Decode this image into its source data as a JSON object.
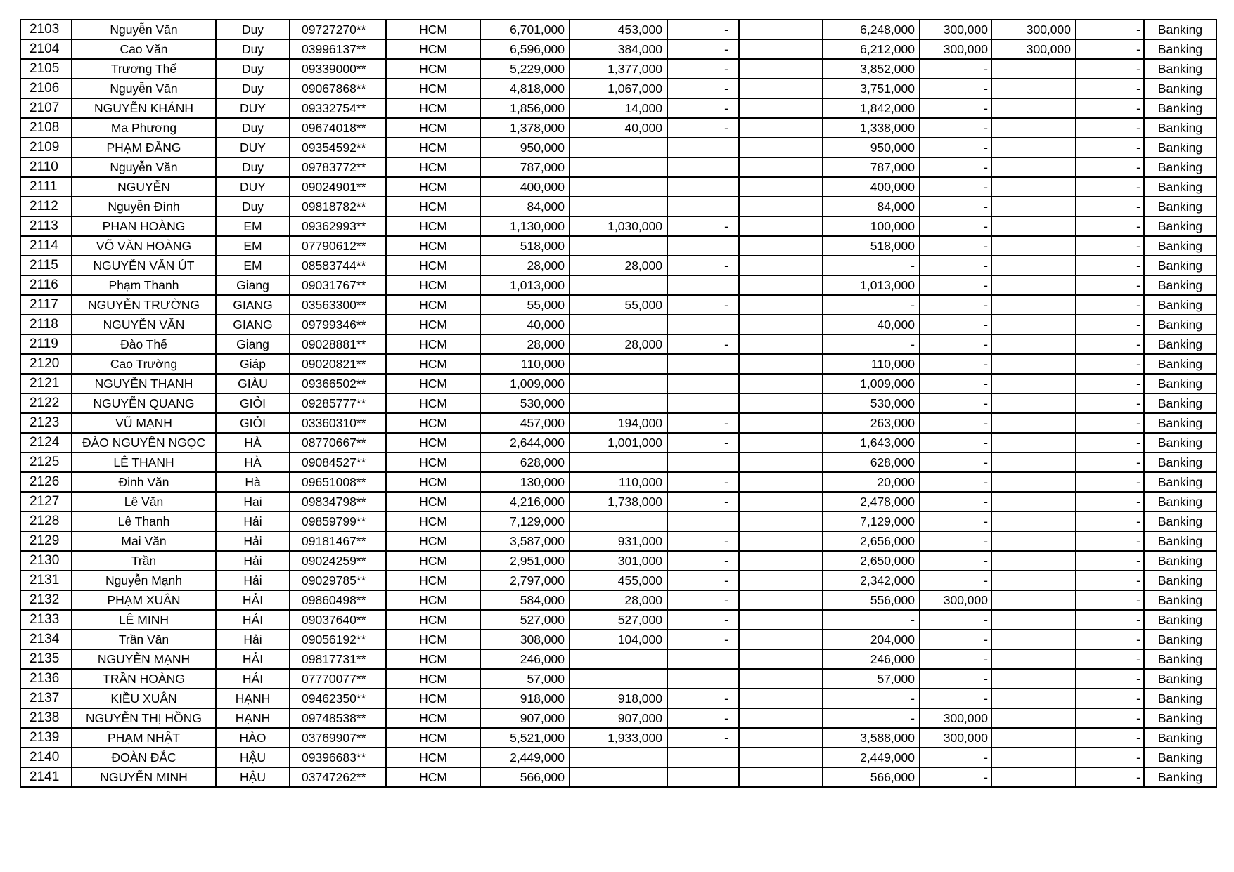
{
  "table": {
    "rows": [
      [
        "2103",
        "Nguyễn Văn",
        "Duy",
        "09727270**",
        "HCM",
        "6,701,000",
        "453,000",
        "-",
        "",
        "6,248,000",
        "300,000",
        "300,000",
        "-",
        "Banking"
      ],
      [
        "2104",
        "Cao Văn",
        "Duy",
        "03996137**",
        "HCM",
        "6,596,000",
        "384,000",
        "-",
        "",
        "6,212,000",
        "300,000",
        "300,000",
        "-",
        "Banking"
      ],
      [
        "2105",
        "Trương Thế",
        "Duy",
        "09339000**",
        "HCM",
        "5,229,000",
        "1,377,000",
        "-",
        "",
        "3,852,000",
        "-",
        "",
        "-",
        "Banking"
      ],
      [
        "2106",
        "Nguyễn Văn",
        "Duy",
        "09067868**",
        "HCM",
        "4,818,000",
        "1,067,000",
        "-",
        "",
        "3,751,000",
        "-",
        "",
        "-",
        "Banking"
      ],
      [
        "2107",
        "NGUYỄN KHÁNH",
        "DUY",
        "09332754**",
        "HCM",
        "1,856,000",
        "14,000",
        "-",
        "",
        "1,842,000",
        "-",
        "",
        "-",
        "Banking"
      ],
      [
        "2108",
        "Ma Phương",
        "Duy",
        "09674018**",
        "HCM",
        "1,378,000",
        "40,000",
        "-",
        "",
        "1,338,000",
        "-",
        "",
        "-",
        "Banking"
      ],
      [
        "2109",
        "PHẠM ĐĂNG",
        "DUY",
        "09354592**",
        "HCM",
        "950,000",
        "",
        "",
        "",
        "950,000",
        "-",
        "",
        "-",
        "Banking"
      ],
      [
        "2110",
        "Nguyễn Văn",
        "Duy",
        "09783772**",
        "HCM",
        "787,000",
        "",
        "",
        "",
        "787,000",
        "-",
        "",
        "-",
        "Banking"
      ],
      [
        "2111",
        "NGUYỄN",
        "DUY",
        "09024901**",
        "HCM",
        "400,000",
        "",
        "",
        "",
        "400,000",
        "-",
        "",
        "-",
        "Banking"
      ],
      [
        "2112",
        "Nguyễn Đình",
        "Duy",
        "09818782**",
        "HCM",
        "84,000",
        "",
        "",
        "",
        "84,000",
        "-",
        "",
        "-",
        "Banking"
      ],
      [
        "2113",
        "PHAN HOÀNG",
        "EM",
        "09362993**",
        "HCM",
        "1,130,000",
        "1,030,000",
        "-",
        "",
        "100,000",
        "-",
        "",
        "-",
        "Banking"
      ],
      [
        "2114",
        "VÕ VĂN HOÀNG",
        "EM",
        "07790612**",
        "HCM",
        "518,000",
        "",
        "",
        "",
        "518,000",
        "-",
        "",
        "-",
        "Banking"
      ],
      [
        "2115",
        "NGUYỄN VĂN ÚT",
        "EM",
        "08583744**",
        "HCM",
        "28,000",
        "28,000",
        "-",
        "",
        "-",
        "-",
        "",
        "-",
        "Banking"
      ],
      [
        "2116",
        "Phạm Thanh",
        "Giang",
        "09031767**",
        "HCM",
        "1,013,000",
        "",
        "",
        "",
        "1,013,000",
        "-",
        "",
        "-",
        "Banking"
      ],
      [
        "2117",
        "NGUYỄN TRƯỜNG",
        "GIANG",
        "03563300**",
        "HCM",
        "55,000",
        "55,000",
        "-",
        "",
        "-",
        "-",
        "",
        "-",
        "Banking"
      ],
      [
        "2118",
        "NGUYỄN VĂN",
        "GIANG",
        "09799346**",
        "HCM",
        "40,000",
        "",
        "",
        "",
        "40,000",
        "-",
        "",
        "-",
        "Banking"
      ],
      [
        "2119",
        "Đào Thế",
        "Giang",
        "09028881**",
        "HCM",
        "28,000",
        "28,000",
        "-",
        "",
        "-",
        "-",
        "",
        "-",
        "Banking"
      ],
      [
        "2120",
        "Cao Trường",
        "Giáp",
        "09020821**",
        "HCM",
        "110,000",
        "",
        "",
        "",
        "110,000",
        "-",
        "",
        "-",
        "Banking"
      ],
      [
        "2121",
        "NGUYỄN THANH",
        "GIÀU",
        "09366502**",
        "HCM",
        "1,009,000",
        "",
        "",
        "",
        "1,009,000",
        "-",
        "",
        "-",
        "Banking"
      ],
      [
        "2122",
        "NGUYỄN QUANG",
        "GIỎI",
        "09285777**",
        "HCM",
        "530,000",
        "",
        "",
        "",
        "530,000",
        "-",
        "",
        "-",
        "Banking"
      ],
      [
        "2123",
        "VŨ MẠNH",
        "GIỎI",
        "03360310**",
        "HCM",
        "457,000",
        "194,000",
        "-",
        "",
        "263,000",
        "-",
        "",
        "-",
        "Banking"
      ],
      [
        "2124",
        "ĐÀO NGUYÊN NGỌC",
        "HÀ",
        "08770667**",
        "HCM",
        "2,644,000",
        "1,001,000",
        "-",
        "",
        "1,643,000",
        "-",
        "",
        "-",
        "Banking"
      ],
      [
        "2125",
        "LÊ THANH",
        "HÀ",
        "09084527**",
        "HCM",
        "628,000",
        "",
        "",
        "",
        "628,000",
        "-",
        "",
        "-",
        "Banking"
      ],
      [
        "2126",
        "Đinh Văn",
        "Hà",
        "09651008**",
        "HCM",
        "130,000",
        "110,000",
        "-",
        "",
        "20,000",
        "-",
        "",
        "-",
        "Banking"
      ],
      [
        "2127",
        "Lê Văn",
        "Hai",
        "09834798**",
        "HCM",
        "4,216,000",
        "1,738,000",
        "-",
        "",
        "2,478,000",
        "-",
        "",
        "-",
        "Banking"
      ],
      [
        "2128",
        "Lê Thanh",
        "Hải",
        "09859799**",
        "HCM",
        "7,129,000",
        "",
        "",
        "",
        "7,129,000",
        "-",
        "",
        "-",
        "Banking"
      ],
      [
        "2129",
        "Mai Văn",
        "Hải",
        "09181467**",
        "HCM",
        "3,587,000",
        "931,000",
        "-",
        "",
        "2,656,000",
        "-",
        "",
        "-",
        "Banking"
      ],
      [
        "2130",
        "Trần",
        "Hải",
        "09024259**",
        "HCM",
        "2,951,000",
        "301,000",
        "-",
        "",
        "2,650,000",
        "-",
        "",
        "-",
        "Banking"
      ],
      [
        "2131",
        "Nguyễn Mạnh",
        "Hải",
        "09029785**",
        "HCM",
        "2,797,000",
        "455,000",
        "-",
        "",
        "2,342,000",
        "-",
        "",
        "-",
        "Banking"
      ],
      [
        "2132",
        "PHẠM XUÂN",
        "HẢI",
        "09860498**",
        "HCM",
        "584,000",
        "28,000",
        "-",
        "",
        "556,000",
        "300,000",
        "",
        "-",
        "Banking"
      ],
      [
        "2133",
        "LÊ MINH",
        "HẢI",
        "09037640**",
        "HCM",
        "527,000",
        "527,000",
        "-",
        "",
        "-",
        "-",
        "",
        "-",
        "Banking"
      ],
      [
        "2134",
        "Trần Văn",
        "Hải",
        "09056192**",
        "HCM",
        "308,000",
        "104,000",
        "-",
        "",
        "204,000",
        "-",
        "",
        "-",
        "Banking"
      ],
      [
        "2135",
        "NGUYỄN MẠNH",
        "HẢI",
        "09817731**",
        "HCM",
        "246,000",
        "",
        "",
        "",
        "246,000",
        "-",
        "",
        "-",
        "Banking"
      ],
      [
        "2136",
        "TRẦN HOÀNG",
        "HẢI",
        "07770077**",
        "HCM",
        "57,000",
        "",
        "",
        "",
        "57,000",
        "-",
        "",
        "-",
        "Banking"
      ],
      [
        "2137",
        "KIỀU XUÂN",
        "HẠNH",
        "09462350**",
        "HCM",
        "918,000",
        "918,000",
        "-",
        "",
        "-",
        "-",
        "",
        "-",
        "Banking"
      ],
      [
        "2138",
        "NGUYỄN THỊ HỒNG",
        "HẠNH",
        "09748538**",
        "HCM",
        "907,000",
        "907,000",
        "-",
        "",
        "-",
        "300,000",
        "",
        "-",
        "Banking"
      ],
      [
        "2139",
        "PHẠM NHẬT",
        "HÀO",
        "03769907**",
        "HCM",
        "5,521,000",
        "1,933,000",
        "-",
        "",
        "3,588,000",
        "300,000",
        "",
        "-",
        "Banking"
      ],
      [
        "2140",
        "ĐOÀN ĐẮC",
        "HẬU",
        "09396683**",
        "HCM",
        "2,449,000",
        "",
        "",
        "",
        "2,449,000",
        "-",
        "",
        "-",
        "Banking"
      ],
      [
        "2141",
        "NGUYỄN MINH",
        "HẬU",
        "03747262**",
        "HCM",
        "566,000",
        "",
        "",
        "",
        "566,000",
        "-",
        "",
        "-",
        "Banking"
      ]
    ]
  }
}
